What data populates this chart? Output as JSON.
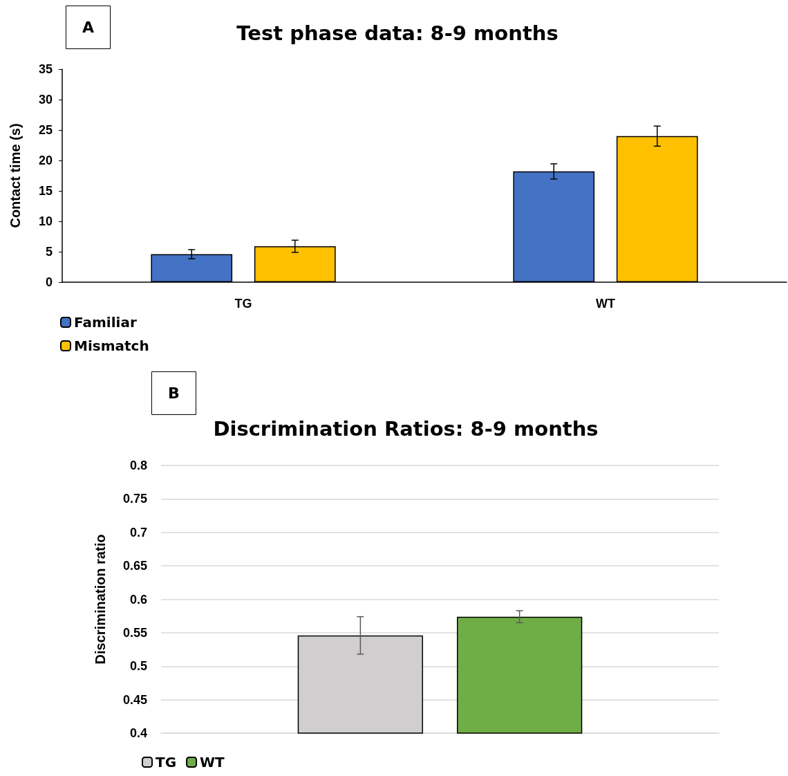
{
  "chart_data": [
    {
      "type": "bar",
      "title": "Test phase data: 8-9 months",
      "ylabel": "Contact time (s)",
      "annotations": [
        "A"
      ],
      "categories": [
        "TG",
        "WT"
      ],
      "series": [
        {
          "name": "Familiar",
          "color": "#4472c4",
          "values": [
            4.6,
            18.2
          ],
          "errors": [
            0.75,
            1.25
          ]
        },
        {
          "name": "Mismatch",
          "color": "#ffc000",
          "values": [
            5.9,
            24.0
          ],
          "errors": [
            1.0,
            1.65
          ]
        }
      ],
      "ylim": [
        0,
        35
      ],
      "yticks": [
        0,
        5,
        10,
        15,
        20,
        25,
        30,
        35
      ],
      "grid": false,
      "legend": "bottom left"
    },
    {
      "type": "bar",
      "title": "Discrimination Ratios: 8-9 months",
      "ylabel": "Discrimination ratio",
      "annotations": [
        "B"
      ],
      "categories": [
        null
      ],
      "series": [
        {
          "name": "TG",
          "color": "#d0cece",
          "values": [
            0.546
          ],
          "errors": [
            0.028
          ]
        },
        {
          "name": "WT",
          "color": "#70ad47",
          "values": [
            0.574
          ],
          "errors": [
            0.009
          ]
        }
      ],
      "ylim": [
        0.4,
        0.8
      ],
      "yticks": [
        0.4,
        0.45,
        0.5,
        0.55,
        0.6,
        0.65,
        0.7,
        0.75,
        0.8
      ],
      "grid": "y",
      "legend": "bottom left"
    }
  ]
}
